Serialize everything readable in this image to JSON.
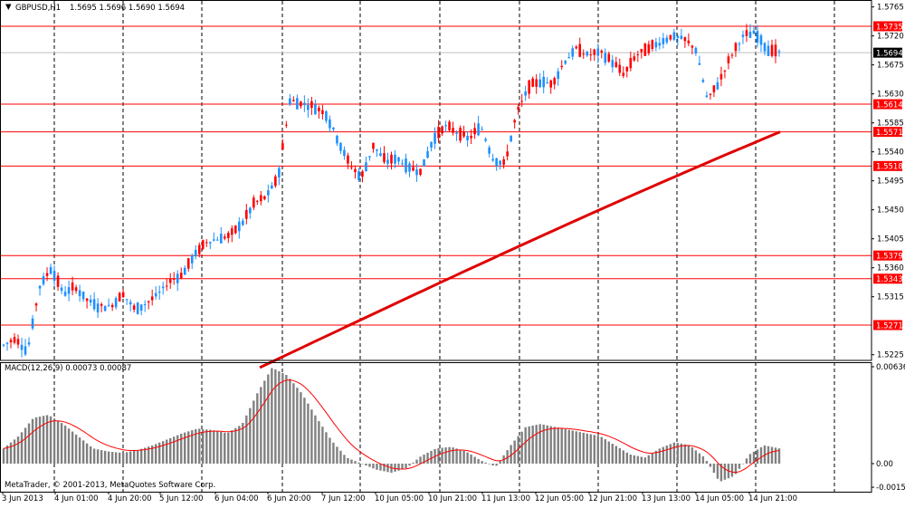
{
  "header": {
    "symbol_label": "GBPUSD,H1",
    "ohlc": "1.5695 1.5696 1.5690 1.5694"
  },
  "indicator": {
    "label": "MACD(12,26,9) 0.00073 0.00087"
  },
  "footer": {
    "copyright": "MetaTrader, © 2001-2013, MetaQuotes Software Corp."
  },
  "colors": {
    "background": "#ffffff",
    "up_candle": "#1e90ff",
    "down_candle": "#ff0000",
    "moving_average": "#e00000",
    "level_line": "#ff0000",
    "macd_histogram": "#808080",
    "macd_signal": "#ff0000",
    "grid_vertical": "#000000",
    "current_price_bg": "#000000"
  },
  "chart_data": [
    {
      "type": "candlestick",
      "symbol": "GBPUSD",
      "timeframe": "H1",
      "ylim": [
        1.5205,
        1.5765
      ],
      "y_ticks": [
        1.5765,
        1.572,
        1.5675,
        1.563,
        1.5585,
        1.554,
        1.5495,
        1.545,
        1.5405,
        1.536,
        1.5315,
        1.5225
      ],
      "x_tick_labels": [
        "3 Jun 2013",
        "4 Jun 01:00",
        "4 Jun 20:00",
        "5 Jun 12:00",
        "6 Jun 04:00",
        "6 Jun 20:00",
        "7 Jun 12:00",
        "10 Jun 05:00",
        "10 Jun 21:00",
        "11 Jun 13:00",
        "12 Jun 05:00",
        "12 Jun 21:00",
        "13 Jun 13:00",
        "14 Jun 05:00",
        "14 Jun 21:00"
      ],
      "horizontal_levels": [
        1.5735,
        1.5614,
        1.5571,
        1.5518,
        1.5379,
        1.5343,
        1.5271
      ],
      "current_price": 1.5694,
      "close_path": [
        1.524,
        1.525,
        1.523,
        1.533,
        1.536,
        1.532,
        1.533,
        1.531,
        1.53,
        1.53,
        1.532,
        1.5295,
        1.5305,
        1.532,
        1.534,
        1.535,
        1.538,
        1.54,
        1.5405,
        1.541,
        1.543,
        1.546,
        1.547,
        1.55,
        1.562,
        1.5615,
        1.561,
        1.56,
        1.556,
        1.552,
        1.55,
        1.555,
        1.5525,
        1.553,
        1.5515,
        1.551,
        1.556,
        1.558,
        1.557,
        1.556,
        1.558,
        1.553,
        1.552,
        1.56,
        1.564,
        1.565,
        1.5645,
        1.568,
        1.57,
        1.569,
        1.5695,
        1.568,
        1.566,
        1.569,
        1.57,
        1.571,
        1.572,
        1.5715,
        1.57,
        1.562,
        1.565,
        1.569,
        1.572,
        1.5725,
        1.57,
        1.5694
      ],
      "moving_average": {
        "x_range": [
          "6 Jun",
          "15 Jun"
        ],
        "start": 1.5205,
        "end": 1.5571
      }
    },
    {
      "type": "bar",
      "title": "MACD(12,26,9)",
      "main_value": 0.00073,
      "signal_value": 0.00087,
      "ylim": [
        -0.00155,
        0.00636
      ],
      "y_ticks": [
        0.00636,
        0.0,
        -0.00155
      ],
      "y_tick_labels": [
        "0.00636",
        "0.00",
        "-0.00155"
      ],
      "histogram_profile": [
        0.001,
        0.0018,
        0.003,
        0.0032,
        0.0026,
        0.0018,
        0.001,
        0.0008,
        0.0007,
        0.0009,
        0.0012,
        0.0016,
        0.002,
        0.0023,
        0.0022,
        0.002,
        0.0026,
        0.0046,
        0.0063,
        0.0058,
        0.0046,
        0.003,
        0.0015,
        0.0004,
        0.0,
        -0.0004,
        -0.0006,
        -0.0003,
        0.0005,
        0.001,
        0.0011,
        0.0008,
        0.0002,
        -0.0002,
        0.0012,
        0.0024,
        0.0026,
        0.0024,
        0.0022,
        0.002,
        0.0018,
        0.0012,
        0.0006,
        0.0004,
        0.001,
        0.0014,
        0.0012,
        0.0004,
        -0.0012,
        -0.0008,
        0.0006,
        0.0012,
        0.001
      ]
    }
  ],
  "price_axis_labels": [
    "1.5765",
    "1.5720",
    "1.5675",
    "1.5630",
    "1.5585",
    "1.5540",
    "1.5495",
    "1.5450",
    "1.5405",
    "1.5360",
    "1.5315",
    "1.5225"
  ],
  "level_labels": [
    "1.5735",
    "1.5614",
    "1.5571",
    "1.5518",
    "1.5379",
    "1.5343",
    "1.5271"
  ],
  "current_price_label": "1.5694"
}
